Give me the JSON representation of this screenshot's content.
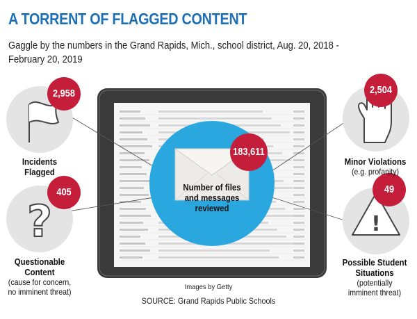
{
  "title": "A TORRENT OF FLAGGED CONTENT",
  "subtitle_lines": [
    "Gaggle by the numbers in the Grand Rapids, Mich., school district, Aug. 20, 2018 -",
    "February 20, 2019"
  ],
  "colors": {
    "title_blue": "#1f6fb5",
    "circle_blue": "#2aa7df",
    "badge_red": "#c41e3a",
    "icon_bg": "#e4e4e4",
    "tablet_frame": "#3a3a3a"
  },
  "chart_data": {
    "type": "table",
    "title": "A TORRENT OF FLAGGED CONTENT",
    "center": {
      "value": "183,611",
      "label_lines": [
        "Number of files",
        "and messages",
        "reviewed"
      ],
      "icon": "envelope-icon"
    },
    "categories": [
      {
        "key": "incidents",
        "value": "2,958",
        "label_lines": [
          "Incidents",
          "Flagged"
        ],
        "note_lines": [],
        "icon": "flag-icon"
      },
      {
        "key": "questionable",
        "value": "405",
        "label_lines": [
          "Questionable",
          "Content"
        ],
        "note_lines": [
          "(cause for concern,",
          "no imminent threat)"
        ],
        "icon": "question-mark-icon"
      },
      {
        "key": "minor",
        "value": "2,504",
        "label_lines": [
          "Minor Violations"
        ],
        "note_lines": [
          "(e.g. profanity)"
        ],
        "icon": "raised-hand-icon"
      },
      {
        "key": "situations",
        "value": "49",
        "label_lines": [
          "Possible Student",
          "Situations"
        ],
        "note_lines": [
          "(potentially",
          "imminent threat)"
        ],
        "icon": "warning-triangle-icon"
      }
    ]
  },
  "credits": {
    "images": "Images by Getty",
    "source": "SOURCE: Grand Rapids Public Schools"
  }
}
